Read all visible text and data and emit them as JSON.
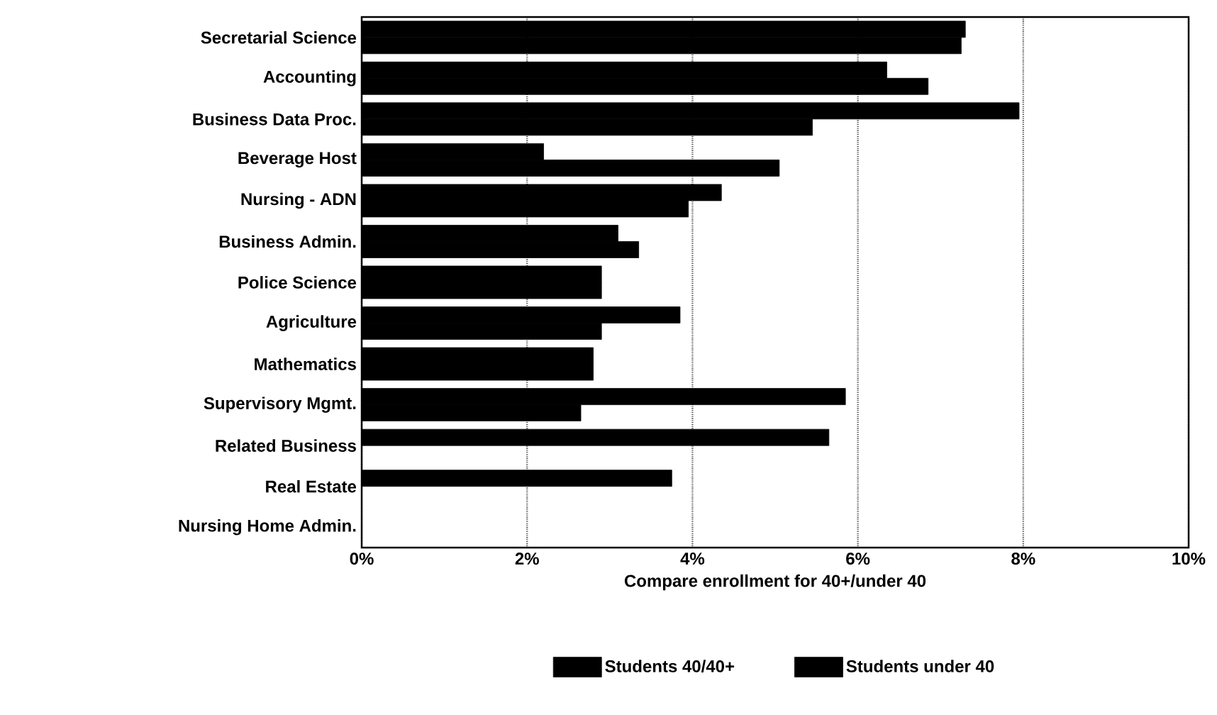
{
  "chart_data": {
    "type": "bar",
    "orientation": "horizontal",
    "xlabel": "Compare enrollment for 40+/under 40",
    "categories": [
      "Secretarial Science",
      "Accounting",
      "Business Data Proc.",
      "Beverage Host",
      "Nursing - ADN",
      "Business Admin.",
      "Police Science",
      "Agriculture",
      "Mathematics",
      "Supervisory Mgmt.",
      "Related Business",
      "Real Estate",
      "Nursing Home Admin."
    ],
    "series": [
      {
        "name": "Students 40/40+",
        "color": "#000000",
        "values": [
          7.3,
          6.35,
          7.95,
          2.2,
          4.35,
          3.1,
          2.9,
          3.85,
          2.8,
          5.85,
          5.65,
          3.75,
          0
        ]
      },
      {
        "name": "Students under 40",
        "color": "#000000",
        "values": [
          7.25,
          6.85,
          5.45,
          5.05,
          3.95,
          3.35,
          2.9,
          2.9,
          2.8,
          2.65,
          null,
          null,
          null
        ]
      }
    ],
    "xlim": [
      0,
      10
    ],
    "xticks": [
      {
        "value": 0,
        "label": "0%"
      },
      {
        "value": 2,
        "label": "2%"
      },
      {
        "value": 4,
        "label": "4%"
      },
      {
        "value": 6,
        "label": "6%"
      },
      {
        "value": 8,
        "label": "8%"
      },
      {
        "value": 10,
        "label": "10%"
      }
    ],
    "grid": "x",
    "legend": "bottom"
  }
}
